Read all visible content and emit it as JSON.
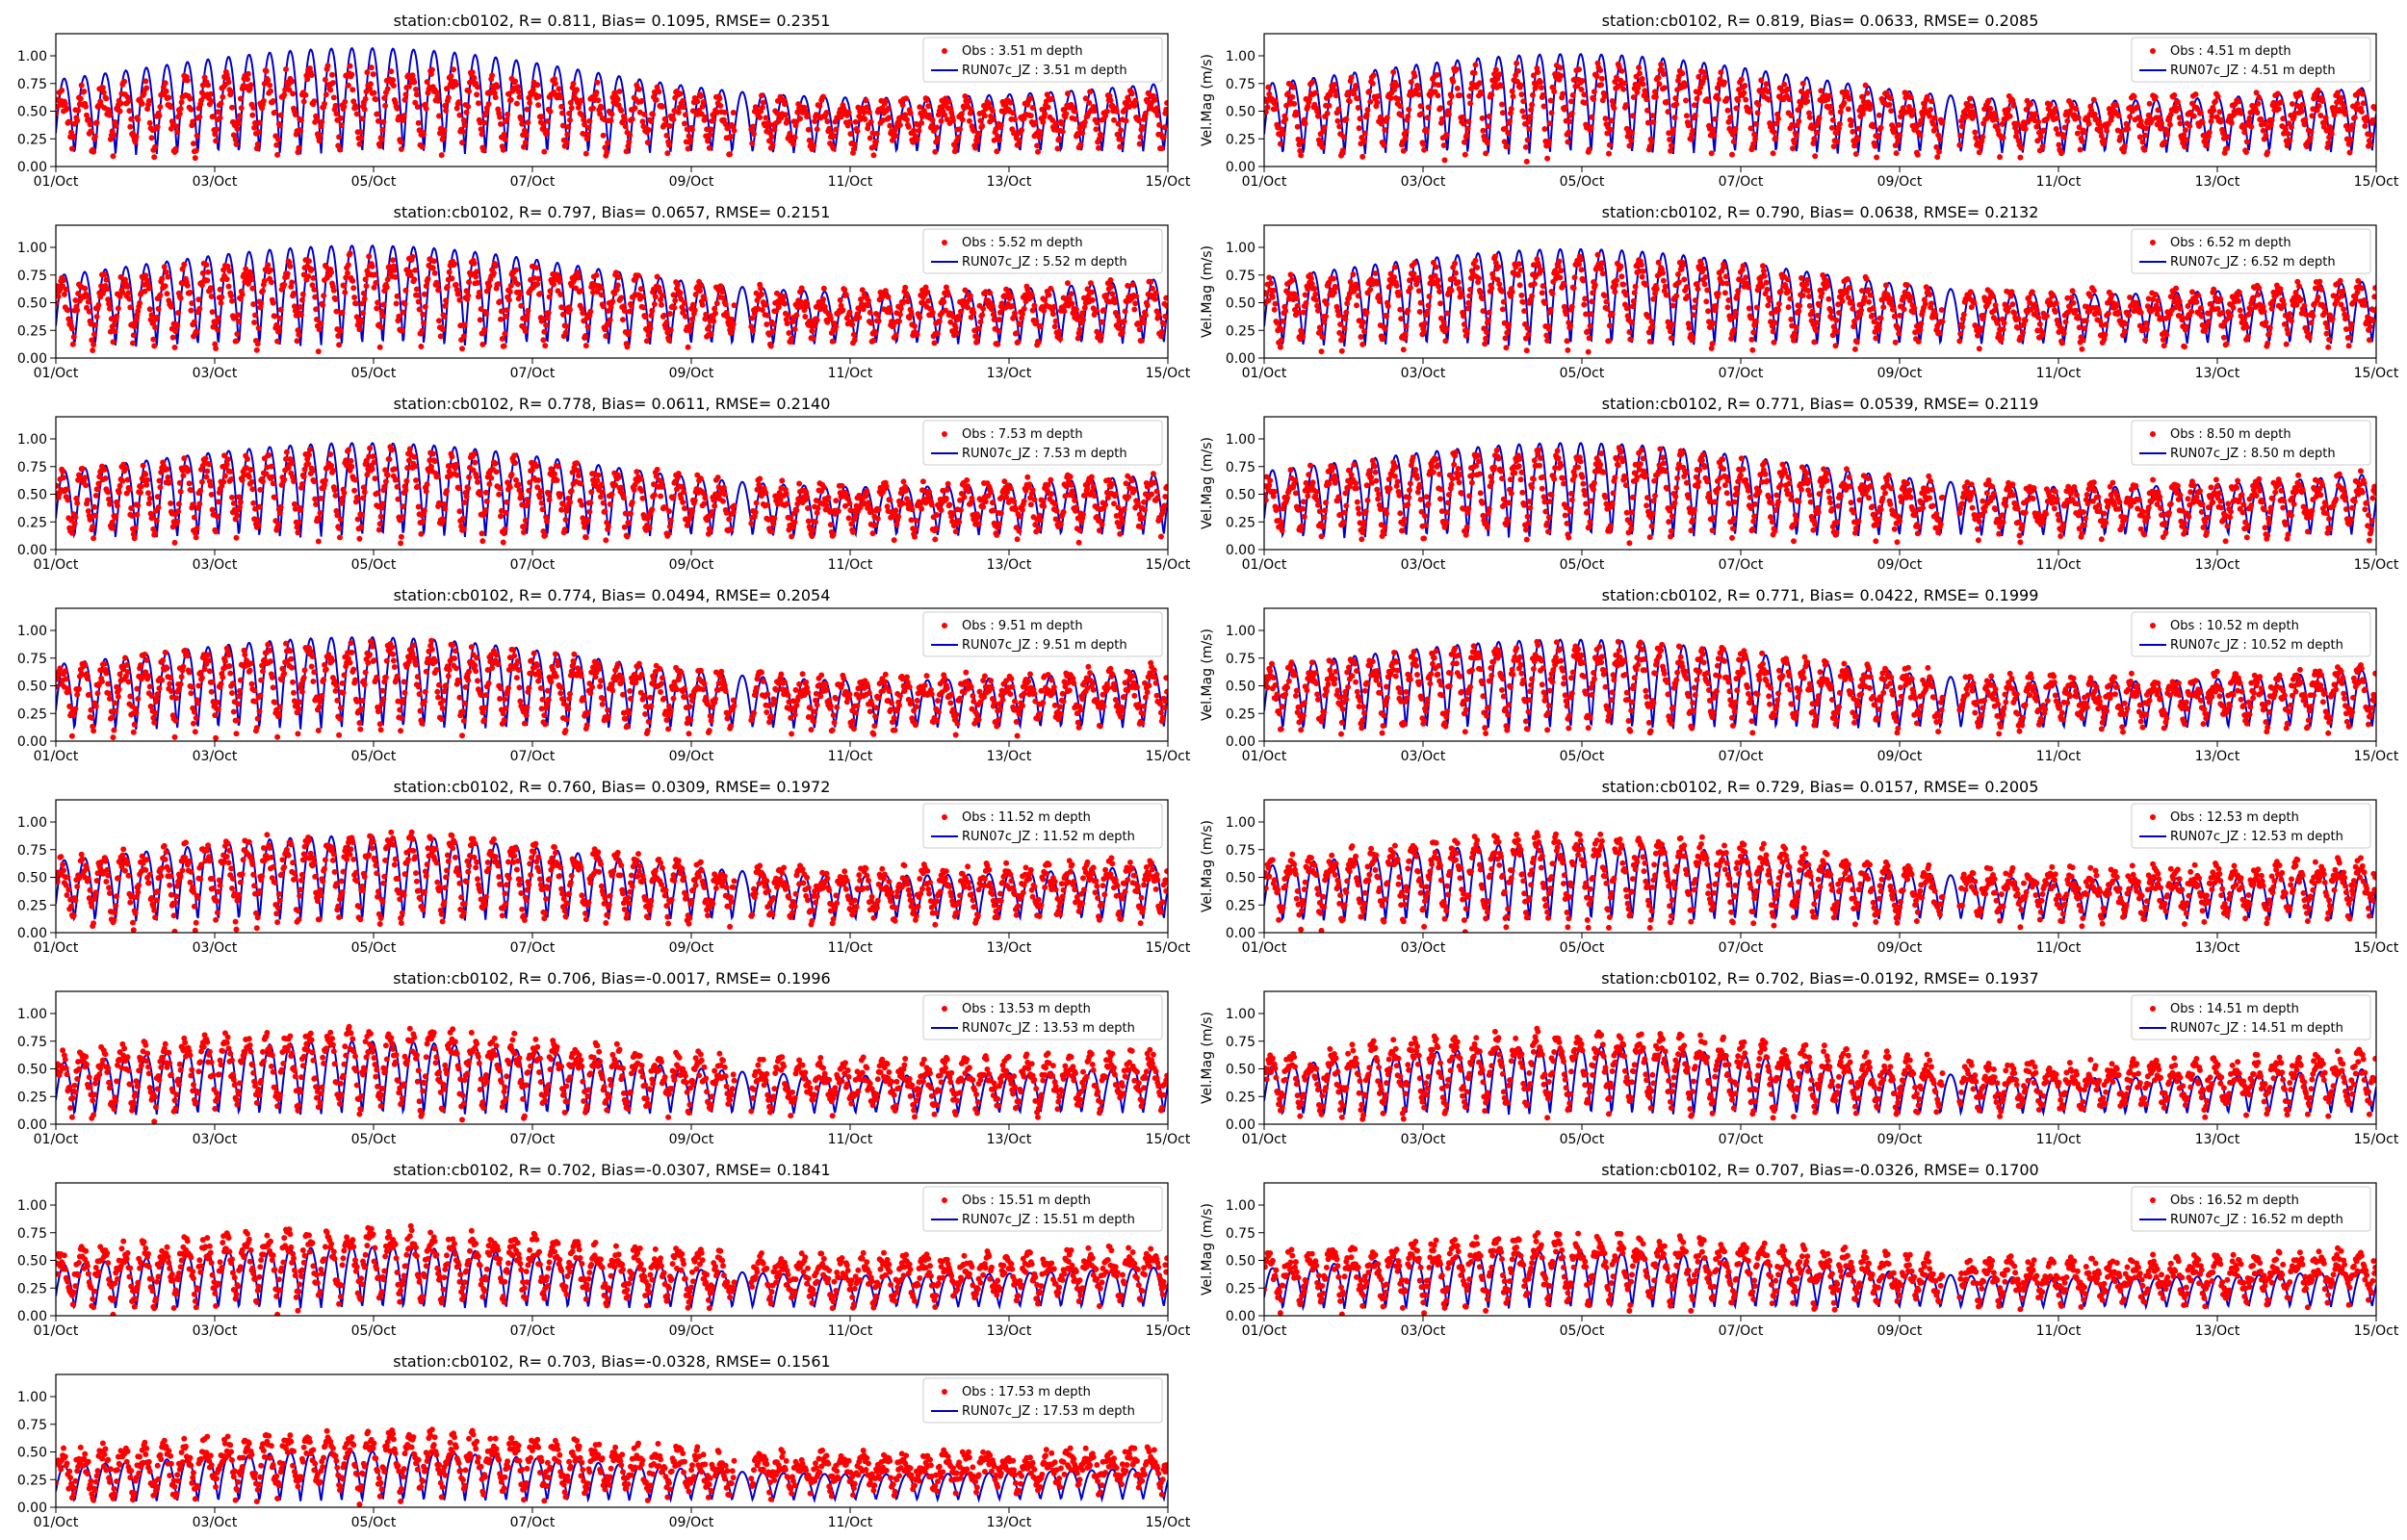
{
  "figure": {
    "station": "cb0102",
    "colors": {
      "obs": "#ff0000",
      "model": "#0000cc",
      "frame": "#000000",
      "background": "#ffffff"
    }
  },
  "chart_data": [
    {
      "type": "line",
      "title": "station:cb0102, R= 0.811, Bias= 0.1095, RMSE= 0.2351",
      "xlabel": "",
      "ylabel": "",
      "xlim": [
        0,
        14
      ],
      "ylim": [
        0,
        1.2
      ],
      "xtick_labels": [
        "01/Oct",
        "03/Oct",
        "05/Oct",
        "07/Oct",
        "09/Oct",
        "11/Oct",
        "13/Oct",
        "15/Oct"
      ],
      "ytick_labels": [
        "0.00",
        "0.25",
        "0.50",
        "0.75",
        "1.00"
      ],
      "legend": [
        "Obs : 3.51 m depth",
        "RUN07c_JZ : 3.51 m depth"
      ],
      "legend_loc": "upper right",
      "series": [
        {
          "name": "Obs : 3.51 m depth",
          "kind": "scatter",
          "color": "#ff0000",
          "amplitude": 0.6,
          "base": 0.16,
          "trend": 0.04
        },
        {
          "name": "RUN07c_JZ : 3.51 m depth",
          "kind": "line",
          "color": "#0000cc",
          "amplitude": 0.9,
          "base": 0.1,
          "trend": 0.03
        }
      ]
    },
    {
      "type": "line",
      "title": "station:cb0102, R= 0.819, Bias= 0.0633, RMSE= 0.2085",
      "xlabel": "",
      "ylabel": "Vel.Mag (m/s)",
      "xlim": [
        0,
        14
      ],
      "ylim": [
        0,
        1.2
      ],
      "xtick_labels": [
        "01/Oct",
        "03/Oct",
        "05/Oct",
        "07/Oct",
        "09/Oct",
        "11/Oct",
        "13/Oct",
        "15/Oct"
      ],
      "ytick_labels": [
        "0.00",
        "0.25",
        "0.50",
        "0.75",
        "1.00"
      ],
      "legend": [
        "Obs : 4.51 m depth",
        "RUN07c_JZ : 4.51 m depth"
      ],
      "legend_loc": "upper right",
      "series": [
        {
          "name": "Obs : 4.51 m depth",
          "kind": "scatter",
          "color": "#ff0000",
          "amplitude": 0.65,
          "base": 0.14,
          "trend": 0.04
        },
        {
          "name": "RUN07c_JZ : 4.51 m depth",
          "kind": "line",
          "color": "#0000cc",
          "amplitude": 0.85,
          "base": 0.1,
          "trend": 0.03
        }
      ]
    },
    {
      "type": "line",
      "title": "station:cb0102, R= 0.797, Bias= 0.0657, RMSE= 0.2151",
      "xlabel": "",
      "ylabel": "",
      "xlim": [
        0,
        14
      ],
      "ylim": [
        0,
        1.2
      ],
      "xtick_labels": [
        "01/Oct",
        "03/Oct",
        "05/Oct",
        "07/Oct",
        "09/Oct",
        "11/Oct",
        "13/Oct",
        "15/Oct"
      ],
      "ytick_labels": [
        "0.00",
        "0.25",
        "0.50",
        "0.75",
        "1.00"
      ],
      "legend": [
        "Obs : 5.52 m depth",
        "RUN07c_JZ : 5.52 m depth"
      ],
      "legend_loc": "upper right",
      "series": [
        {
          "name": "Obs : 5.52 m depth",
          "kind": "scatter",
          "color": "#ff0000",
          "amplitude": 0.65,
          "base": 0.14,
          "trend": 0.04
        },
        {
          "name": "RUN07c_JZ : 5.52 m depth",
          "kind": "line",
          "color": "#0000cc",
          "amplitude": 0.85,
          "base": 0.1,
          "trend": 0.03
        }
      ]
    },
    {
      "type": "line",
      "title": "station:cb0102, R= 0.790, Bias= 0.0638, RMSE= 0.2132",
      "xlabel": "",
      "ylabel": "Vel.Mag (m/s)",
      "xlim": [
        0,
        14
      ],
      "ylim": [
        0,
        1.2
      ],
      "xtick_labels": [
        "01/Oct",
        "03/Oct",
        "05/Oct",
        "07/Oct",
        "09/Oct",
        "11/Oct",
        "13/Oct",
        "15/Oct"
      ],
      "ytick_labels": [
        "0.00",
        "0.25",
        "0.50",
        "0.75",
        "1.00"
      ],
      "legend": [
        "Obs : 6.52 m depth",
        "RUN07c_JZ : 6.52 m depth"
      ],
      "legend_loc": "upper right",
      "series": [
        {
          "name": "Obs : 6.52 m depth",
          "kind": "scatter",
          "color": "#ff0000",
          "amplitude": 0.65,
          "base": 0.13,
          "trend": 0.05
        },
        {
          "name": "RUN07c_JZ : 6.52 m depth",
          "kind": "line",
          "color": "#0000cc",
          "amplitude": 0.82,
          "base": 0.1,
          "trend": 0.03
        }
      ]
    },
    {
      "type": "line",
      "title": "station:cb0102, R= 0.778, Bias= 0.0611, RMSE= 0.2140",
      "xlabel": "",
      "ylabel": "",
      "xlim": [
        0,
        14
      ],
      "ylim": [
        0,
        1.2
      ],
      "xtick_labels": [
        "01/Oct",
        "03/Oct",
        "05/Oct",
        "07/Oct",
        "09/Oct",
        "11/Oct",
        "13/Oct",
        "15/Oct"
      ],
      "ytick_labels": [
        "0.00",
        "0.25",
        "0.50",
        "0.75",
        "1.00"
      ],
      "legend": [
        "Obs : 7.53 m depth",
        "RUN07c_JZ : 7.53 m depth"
      ],
      "legend_loc": "upper right",
      "series": [
        {
          "name": "Obs : 7.53 m depth",
          "kind": "scatter",
          "color": "#ff0000",
          "amplitude": 0.65,
          "base": 0.12,
          "trend": 0.05
        },
        {
          "name": "RUN07c_JZ : 7.53 m depth",
          "kind": "line",
          "color": "#0000cc",
          "amplitude": 0.8,
          "base": 0.1,
          "trend": 0.03
        }
      ]
    },
    {
      "type": "line",
      "title": "station:cb0102, R= 0.771, Bias= 0.0539, RMSE= 0.2119",
      "xlabel": "",
      "ylabel": "Vel.Mag (m/s)",
      "xlim": [
        0,
        14
      ],
      "ylim": [
        0,
        1.2
      ],
      "xtick_labels": [
        "01/Oct",
        "03/Oct",
        "05/Oct",
        "07/Oct",
        "09/Oct",
        "11/Oct",
        "13/Oct",
        "15/Oct"
      ],
      "ytick_labels": [
        "0.00",
        "0.25",
        "0.50",
        "0.75",
        "1.00"
      ],
      "legend": [
        "Obs : 8.50 m depth",
        "RUN07c_JZ : 8.50 m depth"
      ],
      "legend_loc": "upper right",
      "series": [
        {
          "name": "Obs : 8.50 m depth",
          "kind": "scatter",
          "color": "#ff0000",
          "amplitude": 0.65,
          "base": 0.12,
          "trend": 0.05
        },
        {
          "name": "RUN07c_JZ : 8.50 m depth",
          "kind": "line",
          "color": "#0000cc",
          "amplitude": 0.8,
          "base": 0.1,
          "trend": 0.03
        }
      ]
    },
    {
      "type": "line",
      "title": "station:cb0102, R= 0.774, Bias= 0.0494, RMSE= 0.2054",
      "xlabel": "",
      "ylabel": "",
      "xlim": [
        0,
        14
      ],
      "ylim": [
        0,
        1.2
      ],
      "xtick_labels": [
        "01/Oct",
        "03/Oct",
        "05/Oct",
        "07/Oct",
        "09/Oct",
        "11/Oct",
        "13/Oct",
        "15/Oct"
      ],
      "ytick_labels": [
        "0.00",
        "0.25",
        "0.50",
        "0.75",
        "1.00"
      ],
      "legend": [
        "Obs : 9.51 m depth",
        "RUN07c_JZ : 9.51 m depth"
      ],
      "legend_loc": "upper right",
      "series": [
        {
          "name": "Obs : 9.51 m depth",
          "kind": "scatter",
          "color": "#ff0000",
          "amplitude": 0.65,
          "base": 0.11,
          "trend": 0.05
        },
        {
          "name": "RUN07c_JZ : 9.51 m depth",
          "kind": "line",
          "color": "#0000cc",
          "amplitude": 0.78,
          "base": 0.1,
          "trend": 0.02
        }
      ]
    },
    {
      "type": "line",
      "title": "station:cb0102, R= 0.771, Bias= 0.0422, RMSE= 0.1999",
      "xlabel": "",
      "ylabel": "Vel.Mag (m/s)",
      "xlim": [
        0,
        14
      ],
      "ylim": [
        0,
        1.2
      ],
      "xtick_labels": [
        "01/Oct",
        "03/Oct",
        "05/Oct",
        "07/Oct",
        "09/Oct",
        "11/Oct",
        "13/Oct",
        "15/Oct"
      ],
      "ytick_labels": [
        "0.00",
        "0.25",
        "0.50",
        "0.75",
        "1.00"
      ],
      "legend": [
        "Obs : 10.52 m depth",
        "RUN07c_JZ : 10.52 m depth"
      ],
      "legend_loc": "upper right",
      "series": [
        {
          "name": "Obs : 10.52 m depth",
          "kind": "scatter",
          "color": "#ff0000",
          "amplitude": 0.65,
          "base": 0.11,
          "trend": 0.05
        },
        {
          "name": "RUN07c_JZ : 10.52 m depth",
          "kind": "line",
          "color": "#0000cc",
          "amplitude": 0.76,
          "base": 0.1,
          "trend": 0.02
        }
      ]
    },
    {
      "type": "line",
      "title": "station:cb0102, R= 0.760, Bias= 0.0309, RMSE= 0.1972",
      "xlabel": "",
      "ylabel": "",
      "xlim": [
        0,
        14
      ],
      "ylim": [
        0,
        1.2
      ],
      "xtick_labels": [
        "01/Oct",
        "03/Oct",
        "05/Oct",
        "07/Oct",
        "09/Oct",
        "11/Oct",
        "13/Oct",
        "15/Oct"
      ],
      "ytick_labels": [
        "0.00",
        "0.25",
        "0.50",
        "0.75",
        "1.00"
      ],
      "legend": [
        "Obs : 11.52 m depth",
        "RUN07c_JZ : 11.52 m depth"
      ],
      "legend_loc": "upper right",
      "series": [
        {
          "name": "Obs : 11.52 m depth",
          "kind": "scatter",
          "color": "#ff0000",
          "amplitude": 0.65,
          "base": 0.1,
          "trend": 0.06
        },
        {
          "name": "RUN07c_JZ : 11.52 m depth",
          "kind": "line",
          "color": "#0000cc",
          "amplitude": 0.72,
          "base": 0.1,
          "trend": 0.02
        }
      ]
    },
    {
      "type": "line",
      "title": "station:cb0102, R= 0.729, Bias= 0.0157, RMSE= 0.2005",
      "xlabel": "",
      "ylabel": "Vel.Mag (m/s)",
      "xlim": [
        0,
        14
      ],
      "ylim": [
        0,
        1.2
      ],
      "xtick_labels": [
        "01/Oct",
        "03/Oct",
        "05/Oct",
        "07/Oct",
        "09/Oct",
        "11/Oct",
        "13/Oct",
        "15/Oct"
      ],
      "ytick_labels": [
        "0.00",
        "0.25",
        "0.50",
        "0.75",
        "1.00"
      ],
      "legend": [
        "Obs : 12.53 m depth",
        "RUN07c_JZ : 12.53 m depth"
      ],
      "legend_loc": "upper right",
      "series": [
        {
          "name": "Obs : 12.53 m depth",
          "kind": "scatter",
          "color": "#ff0000",
          "amplitude": 0.65,
          "base": 0.1,
          "trend": 0.06
        },
        {
          "name": "RUN07c_JZ : 12.53 m depth",
          "kind": "line",
          "color": "#0000cc",
          "amplitude": 0.66,
          "base": 0.1,
          "trend": 0.02
        }
      ]
    },
    {
      "type": "line",
      "title": "station:cb0102, R= 0.706, Bias=-0.0017, RMSE= 0.1996",
      "xlabel": "",
      "ylabel": "",
      "xlim": [
        0,
        14
      ],
      "ylim": [
        0,
        1.2
      ],
      "xtick_labels": [
        "01/Oct",
        "03/Oct",
        "05/Oct",
        "07/Oct",
        "09/Oct",
        "11/Oct",
        "13/Oct",
        "15/Oct"
      ],
      "ytick_labels": [
        "0.00",
        "0.25",
        "0.50",
        "0.75",
        "1.00"
      ],
      "legend": [
        "Obs : 13.53 m depth",
        "RUN07c_JZ : 13.53 m depth"
      ],
      "legend_loc": "upper right",
      "series": [
        {
          "name": "Obs : 13.53 m depth",
          "kind": "scatter",
          "color": "#ff0000",
          "amplitude": 0.62,
          "base": 0.1,
          "trend": 0.07
        },
        {
          "name": "RUN07c_JZ : 13.53 m depth",
          "kind": "line",
          "color": "#0000cc",
          "amplitude": 0.62,
          "base": 0.08,
          "trend": 0.02
        }
      ]
    },
    {
      "type": "line",
      "title": "station:cb0102, R= 0.702, Bias=-0.0192, RMSE= 0.1937",
      "xlabel": "",
      "ylabel": "Vel.Mag (m/s)",
      "xlim": [
        0,
        14
      ],
      "ylim": [
        0,
        1.2
      ],
      "xtick_labels": [
        "01/Oct",
        "03/Oct",
        "05/Oct",
        "07/Oct",
        "09/Oct",
        "11/Oct",
        "13/Oct",
        "15/Oct"
      ],
      "ytick_labels": [
        "0.00",
        "0.25",
        "0.50",
        "0.75",
        "1.00"
      ],
      "legend": [
        "Obs : 14.51 m depth",
        "RUN07c_JZ : 14.51 m depth"
      ],
      "legend_loc": "upper right",
      "series": [
        {
          "name": "Obs : 14.51 m depth",
          "kind": "scatter",
          "color": "#ff0000",
          "amplitude": 0.6,
          "base": 0.1,
          "trend": 0.07
        },
        {
          "name": "RUN07c_JZ : 14.51 m depth",
          "kind": "line",
          "color": "#0000cc",
          "amplitude": 0.58,
          "base": 0.08,
          "trend": 0.02
        }
      ]
    },
    {
      "type": "line",
      "title": "station:cb0102, R= 0.702, Bias=-0.0307, RMSE= 0.1841",
      "xlabel": "",
      "ylabel": "",
      "xlim": [
        0,
        14
      ],
      "ylim": [
        0,
        1.2
      ],
      "xtick_labels": [
        "01/Oct",
        "03/Oct",
        "05/Oct",
        "07/Oct",
        "09/Oct",
        "11/Oct",
        "13/Oct",
        "15/Oct"
      ],
      "ytick_labels": [
        "0.00",
        "0.25",
        "0.50",
        "0.75",
        "1.00"
      ],
      "legend": [
        "Obs : 15.51 m depth",
        "RUN07c_JZ : 15.51 m depth"
      ],
      "legend_loc": "upper right",
      "series": [
        {
          "name": "Obs : 15.51 m depth",
          "kind": "scatter",
          "color": "#ff0000",
          "amplitude": 0.55,
          "base": 0.1,
          "trend": 0.08
        },
        {
          "name": "RUN07c_JZ : 15.51 m depth",
          "kind": "line",
          "color": "#0000cc",
          "amplitude": 0.52,
          "base": 0.06,
          "trend": 0.02
        }
      ]
    },
    {
      "type": "line",
      "title": "station:cb0102, R= 0.707, Bias=-0.0326, RMSE= 0.1700",
      "xlabel": "",
      "ylabel": "Vel.Mag (m/s)",
      "xlim": [
        0,
        14
      ],
      "ylim": [
        0,
        1.2
      ],
      "xtick_labels": [
        "01/Oct",
        "03/Oct",
        "05/Oct",
        "07/Oct",
        "09/Oct",
        "11/Oct",
        "13/Oct",
        "15/Oct"
      ],
      "ytick_labels": [
        "0.00",
        "0.25",
        "0.50",
        "0.75",
        "1.00"
      ],
      "legend": [
        "Obs : 16.52 m depth",
        "RUN07c_JZ : 16.52 m depth"
      ],
      "legend_loc": "upper right",
      "series": [
        {
          "name": "Obs : 16.52 m depth",
          "kind": "scatter",
          "color": "#ff0000",
          "amplitude": 0.5,
          "base": 0.1,
          "trend": 0.08
        },
        {
          "name": "RUN07c_JZ : 16.52 m depth",
          "kind": "line",
          "color": "#0000cc",
          "amplitude": 0.48,
          "base": 0.06,
          "trend": 0.02
        }
      ]
    },
    {
      "type": "line",
      "title": "station:cb0102, R= 0.703, Bias=-0.0328, RMSE= 0.1561",
      "xlabel": "",
      "ylabel": "",
      "xlim": [
        0,
        14
      ],
      "ylim": [
        0,
        1.2
      ],
      "xtick_labels": [
        "01/Oct",
        "03/Oct",
        "05/Oct",
        "07/Oct",
        "09/Oct",
        "11/Oct",
        "13/Oct",
        "15/Oct"
      ],
      "ytick_labels": [
        "0.00",
        "0.25",
        "0.50",
        "0.75",
        "1.00"
      ],
      "legend": [
        "Obs : 17.53 m depth",
        "RUN07c_JZ : 17.53 m depth"
      ],
      "legend_loc": "upper right",
      "series": [
        {
          "name": "Obs : 17.53 m depth",
          "kind": "scatter",
          "color": "#ff0000",
          "amplitude": 0.45,
          "base": 0.1,
          "trend": 0.09
        },
        {
          "name": "RUN07c_JZ : 17.53 m depth",
          "kind": "line",
          "color": "#0000cc",
          "amplitude": 0.42,
          "base": 0.05,
          "trend": 0.02
        }
      ]
    }
  ]
}
